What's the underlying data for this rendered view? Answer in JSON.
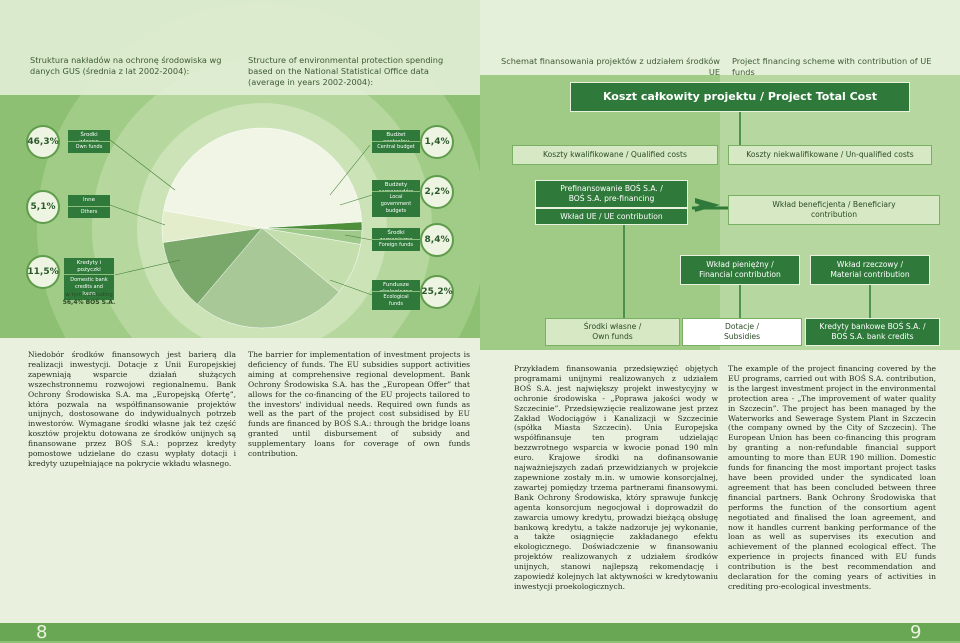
{
  "left_page": {
    "header_pl": "Struktura nakładów na ochronę środowiska wg danych GUS (średnia z lat 2002-2004):",
    "header_en": "Structure of environmental protection spending based on the National Statistical Office data (average in years 2002-2004):",
    "pie": {
      "slices": [
        {
          "name_pl": "Środki własne",
          "name_en": "Own funds",
          "value": 46.3,
          "value_label": "46,3%",
          "color": "#f1f5e6"
        },
        {
          "name_pl": "Budżet centralny",
          "name_en": "Central budget",
          "value": 1.4,
          "value_label": "1,4%",
          "color": "#4f8f3c"
        },
        {
          "name_pl": "Budżety samorządów",
          "name_en": "Local government budgets",
          "value": 2.2,
          "value_label": "2,2%",
          "color": "#9fc98a"
        },
        {
          "name_pl": "Środki zagraniczne",
          "name_en": "Foreign funds",
          "value": 8.4,
          "value_label": "8,4%",
          "color": "#c5deae"
        },
        {
          "name_pl": "Fundusze ekologiczne",
          "name_en": "Ecological funds",
          "value": 25.2,
          "value_label": "25,2%",
          "color": "#a8c897"
        },
        {
          "name_pl": "Kredyty i pożyczki krajowe",
          "name_en": "Domestic bank credits and loans",
          "value": 11.5,
          "value_label": "11,5%",
          "color": "#7aa86a"
        },
        {
          "name_pl": "Inne",
          "name_en": "Others",
          "value": 5.1,
          "value_label": "5,1%",
          "color": "#e3edcc"
        }
      ],
      "note_1": "w tym / including",
      "note_2": "56,4% BOŚ S.A."
    },
    "text_pl": "Niedobór środków finansowych jest barierą dla realizacji inwestycji. Dotacje z Unii Europejskiej zapewniają wsparcie działań służących wszechstronnemu rozwojowi regionalnemu. Bank Ochrony Środowiska S.A. ma „Europejską Ofertę”, która pozwala na współfinansowanie projektów unijnych, dostosowane do indywidualnych potrzeb inwestorów. Wymagane środki własne jak też część kosztów projektu dotowana ze środków unijnych są finansowane przez BOŚ S.A.: poprzez kredyty pomostowe udzielane do czasu wypłaty dotacji i kredyty uzupełniające na pokrycie wkładu własnego.",
    "text_en": "The barrier for implementation of investment projects is deficiency of funds. The EU subsidies support activities aiming at comprehensive regional development. Bank Ochrony Środowiska S.A. has the „European Offer” that allows for the co-financing of the EU projects tailored to the investors' individual needs. Required own funds as well as the part of the project cost subsidised by EU funds are financed by BOŚ S.A.: through the bridge loans granted until disbursement of subsidy and supplementary loans for coverage of own funds contribution.",
    "page_number": "8"
  },
  "right_page": {
    "header_pl": "Schemat finansowania projektów z udziałem środków UE",
    "header_en": "Project financing scheme with contribution of UE funds",
    "diagram": {
      "total": "Koszt całkowity projektu / Project Total Cost",
      "qualified": "Koszty kwalifikowane / Qualified costs",
      "unqualified": "Koszty niekwalifikowane / Un-qualified costs",
      "prefinancing": "Prefinansowanie BOŚ S.A. / BOŚ S.A. pre-financing",
      "eu_contribution": "Wkład UE / UE contribution",
      "beneficiary": "Wkład beneficjenta / Beneficiary contribution",
      "financial": "Wkład pieniężny / Financial contribution",
      "material": "Wkład rzeczowy / Material contribution",
      "own_funds": "Środki własne / Own funds",
      "subsidies": "Dotacje / Subsidies",
      "bank_credits": "Kredyty bankowe BOŚ S.A. / BOŚ S.A. bank credits"
    },
    "text_pl": "Przykładem finansowania przedsięwzięć objętych programami unijnymi realizowanych z udziałem BOŚ S.A. jest największy projekt inwestycyjny w ochronie środowiska - „Poprawa jakości wody w Szczecinie”. Przedsięwzięcie realizowane jest przez Zakład Wodociągów i Kanalizacji w Szczecinie (spółka Miasta Szczecin). Unia Europejska współfinansuje ten program udzielając bezzwrotnego wsparcia w kwocie ponad 190 mln euro. Krajowe środki na dofinansowanie najważniejszych zadań przewidzianych w projekcie zapewnione zostały m.in. w umowie konsorcjalnej, zawartej pomiędzy trzema partnerami finansowymi. Bank Ochrony Środowiska, który sprawuje funkcję agenta konsorcjum negocjował i doprowadził do zawarcia umowy kredytu, prowadzi bieżącą obsługę bankową kredytu, a także nadzoruje jej wykonanie, a także osiągnięcie zakładanego efektu ekologicznego. Doświadczenie w finansowaniu projektów realizowanych z udziałem środków unijnych, stanowi najlepszą rekomendację i zapowiedź kolejnych lat aktywności w kredytowaniu inwestycji proekologicznych.",
    "text_en": "The example of the project financing covered by the EU programs, carried out with BOŚ S.A. contribution, is the largest investment project in the environmental protection area - „The improvement of water quality in Szczecin”. The project has been managed by the Waterworks and Sewerage System Plant in Szczecin (the company owned by the City of Szczecin). The European Union has been co-financing this program by granting a non-refundable financial support amounting to more than EUR 190 million. Domestic funds for financing the most important project tasks have been provided under the syndicated loan agreement that has been concluded between three financial partners. Bank Ochrony Środowiska that performs the function of the consortium agent negotiated and finalised the loan agreement, and now it handles current banking performance of the loan as well as supervises its execution and achievement of the planned ecological effect. The experience in projects financed with EU funds contribution is the best recommendation and declaration for the coming years of activities in crediting pro-ecological investments.",
    "page_number": "9"
  }
}
